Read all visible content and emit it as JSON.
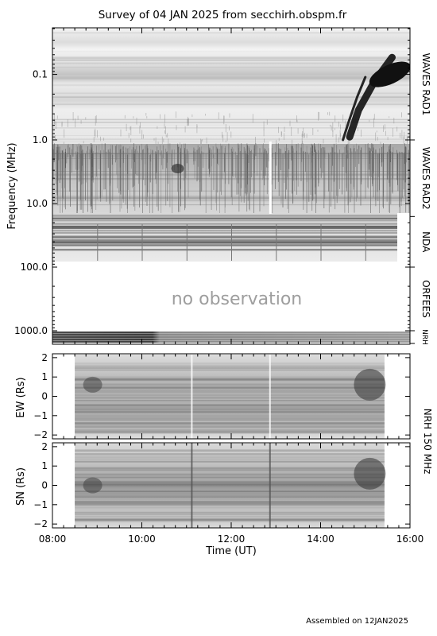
{
  "title": "Survey of 04 JAN 2025 from secchirh.obspm.fr",
  "footer": "Assembled on 12JAN2025",
  "no_observation_text": "no observation",
  "chart_data": [
    {
      "type": "heatmap",
      "panel": "dynamic-spectrum",
      "ylabel": "Frequency (MHz)",
      "y_scale": "log",
      "y_inverted": true,
      "ylim": [
        0.02,
        1500
      ],
      "y_ticks": [
        0.1,
        1.0,
        10.0,
        100.0,
        1000.0
      ],
      "y_tick_labels": [
        "0.1",
        "1.0",
        "10.0",
        "100.0",
        "1000.0"
      ],
      "instruments": [
        {
          "name": "WAVES RAD1",
          "freq_range": [
            0.02,
            1.0
          ]
        },
        {
          "name": "WAVES RAD2",
          "freq_range": [
            1.0,
            16
          ]
        },
        {
          "name": "NDA",
          "freq_range": [
            16,
            100
          ]
        },
        {
          "name": "ORFEES",
          "freq_range": [
            100,
            1000
          ]
        },
        {
          "name": "NRH",
          "freq_range": [
            1000,
            1400
          ]
        }
      ],
      "burst_tracks": [
        {
          "time": [
            15.6,
            15.2,
            14.85,
            14.65
          ],
          "freq": [
            0.055,
            0.13,
            0.35,
            0.9
          ]
        },
        {
          "time": [
            15.0,
            14.82,
            14.62,
            14.5
          ],
          "freq": [
            0.11,
            0.22,
            0.55,
            1.0
          ]
        }
      ]
    },
    {
      "type": "heatmap",
      "panel": "NRH 150 MHz EW",
      "ylabel": "EW (Rs)",
      "ylim": [
        -2.2,
        2.2
      ],
      "y_ticks": [
        -2,
        -1,
        0,
        1,
        2
      ],
      "data_time_range": [
        8.5,
        15.43
      ]
    },
    {
      "type": "heatmap",
      "panel": "NRH 150 MHz SN",
      "ylabel": "SN (Rs)",
      "ylim": [
        -2.2,
        2.2
      ],
      "y_ticks": [
        -2,
        -1,
        0,
        1,
        2
      ],
      "data_time_range": [
        8.5,
        15.43
      ]
    }
  ],
  "x_axis": {
    "label": "Time (UT)",
    "xlim": [
      8,
      16
    ],
    "ticks": [
      8,
      10,
      12,
      14,
      16
    ],
    "tick_labels": [
      "08:00",
      "10:00",
      "12:00",
      "14:00",
      "16:00"
    ]
  },
  "nrh_label": "NRH 150 MHz"
}
